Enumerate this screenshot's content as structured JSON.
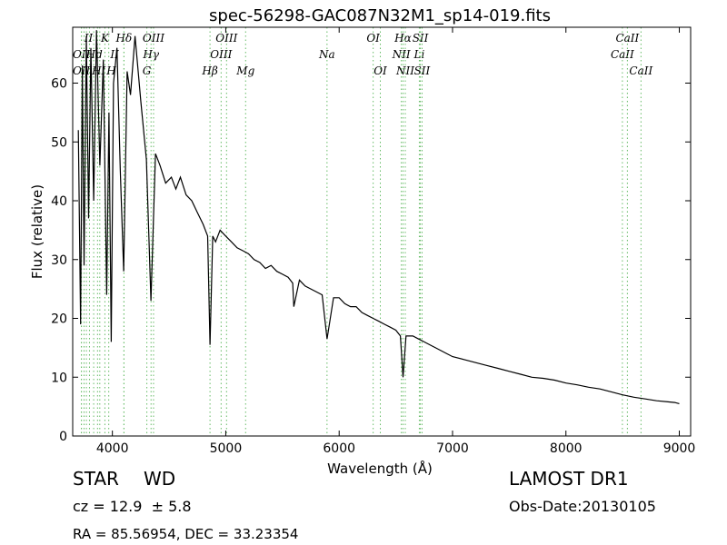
{
  "chart_data": {
    "type": "line",
    "title": "spec-56298-GAC087N32M1_sp14-019.fits",
    "xlabel": "Wavelength (Å)",
    "ylabel": "Flux (relative)",
    "xlim": [
      3650,
      9100
    ],
    "ylim": [
      0,
      69.5
    ],
    "xticks": [
      4000,
      5000,
      6000,
      7000,
      8000,
      9000
    ],
    "yticks": [
      0,
      10,
      20,
      30,
      40,
      50,
      60
    ],
    "grid": false,
    "line_color": "#000000",
    "marker_line_color": "#66bb66",
    "series": [
      {
        "values_note_removed": true,
        "x": [
          3700,
          3720,
          3735,
          3750,
          3770,
          3790,
          3810,
          3835,
          3860,
          3890,
          3920,
          3950,
          3970,
          3990,
          4010,
          4040,
          4070,
          4100,
          4130,
          4160,
          4200,
          4250,
          4300,
          4340,
          4380,
          4420,
          4470,
          4520,
          4560,
          4600,
          4650,
          4700,
          4750,
          4800,
          4840,
          4861,
          4885,
          4910,
          4950,
          5000,
          5050,
          5100,
          5150,
          5200,
          5250,
          5300,
          5350,
          5400,
          5450,
          5500,
          5550,
          5590,
          5600,
          5650,
          5700,
          5750,
          5800,
          5850,
          5893,
          5950,
          6000,
          6050,
          6100,
          6150,
          6200,
          6250,
          6300,
          6350,
          6400,
          6450,
          6500,
          6540,
          6563,
          6590,
          6620,
          6650,
          6700,
          6750,
          6800,
          6850,
          6900,
          6950,
          7000,
          7100,
          7200,
          7300,
          7400,
          7500,
          7600,
          7700,
          7800,
          7900,
          8000,
          8100,
          8200,
          8300,
          8400,
          8500,
          8600,
          8700,
          8800,
          8900,
          8960,
          9000
        ],
        "y": [
          52,
          19,
          63,
          29,
          68,
          37,
          66,
          40,
          69,
          46,
          64,
          24,
          55,
          16,
          60,
          66,
          45,
          28,
          62,
          58,
          68,
          57,
          47,
          23,
          48,
          46,
          43,
          44,
          42,
          44,
          41,
          40,
          38,
          36,
          34,
          15.5,
          34,
          33,
          35,
          34,
          33,
          32,
          31.5,
          31,
          30,
          29.5,
          28.5,
          29,
          28,
          27.5,
          27,
          26,
          22,
          26.5,
          25.5,
          25,
          24.5,
          24,
          16.5,
          23.5,
          23.5,
          22.5,
          22,
          22,
          21,
          20.5,
          20,
          19.5,
          19,
          18.5,
          18,
          17,
          10,
          17,
          17,
          17,
          16.5,
          16,
          15.5,
          15,
          14.5,
          14,
          13.5,
          13,
          12.5,
          12,
          11.5,
          11,
          10.5,
          10,
          9.8,
          9.5,
          9.0,
          8.7,
          8.3,
          8.0,
          7.5,
          7.0,
          6.6,
          6.3,
          6.0,
          5.8,
          5.7,
          5.5
        ]
      }
    ],
    "line_markers": [
      {
        "x": 3727,
        "label": "OII",
        "row": 1
      },
      {
        "x": 3727,
        "label": "OII",
        "row": 2
      },
      {
        "x": 3750,
        "label": "",
        "row": 0
      },
      {
        "x": 3771,
        "label": "",
        "row": 0
      },
      {
        "x": 3798,
        "label": "",
        "row": 0
      },
      {
        "x": 3835,
        "label": "",
        "row": 1
      },
      {
        "x": 3869,
        "label": "",
        "row": 2
      },
      {
        "x": 3889,
        "label": "",
        "row": 1
      },
      {
        "x": 3934,
        "label": "K",
        "row": 0
      },
      {
        "x": 3968,
        "label": "",
        "row": 2
      },
      {
        "x": 4102,
        "label": "Hδ",
        "row": 0
      },
      {
        "x": 4102,
        "label": "",
        "row": 2
      },
      {
        "x": 4304,
        "label": "G",
        "row": 2
      },
      {
        "x": 4341,
        "label": "Hγ",
        "row": 1
      },
      {
        "x": 4363,
        "label": "OIII",
        "row": 0
      },
      {
        "x": 4861,
        "label": "Hβ",
        "row": 2
      },
      {
        "x": 4959,
        "label": "OIII",
        "row": 1
      },
      {
        "x": 5007,
        "label": "OIII",
        "row": 0
      },
      {
        "x": 5175,
        "label": "Mg",
        "row": 2
      },
      {
        "x": 5893,
        "label": "Na",
        "row": 1
      },
      {
        "x": 6300,
        "label": "OI",
        "row": 0
      },
      {
        "x": 6363,
        "label": "OI",
        "row": 2
      },
      {
        "x": 6548,
        "label": "NII",
        "row": 1
      },
      {
        "x": 6563,
        "label": "Hα",
        "row": 0
      },
      {
        "x": 6583,
        "label": "NII",
        "row": 2
      },
      {
        "x": 6707,
        "label": "Li",
        "row": 1
      },
      {
        "x": 6716,
        "label": "SII",
        "row": 0
      },
      {
        "x": 6731,
        "label": "SII",
        "row": 2
      },
      {
        "x": 8498,
        "label": "CaII",
        "row": 1
      },
      {
        "x": 8542,
        "label": "CaII",
        "row": 0
      },
      {
        "x": 8662,
        "label": "CaII",
        "row": 2
      }
    ],
    "marker_label_overlaps": [
      {
        "x": 3790,
        "label": "II",
        "row": 0
      },
      {
        "x": 3840,
        "label": "Hd",
        "row": 1
      },
      {
        "x": 3880,
        "label": "HI",
        "row": 2
      },
      {
        "x": 4020,
        "label": "II",
        "row": 1
      },
      {
        "x": 3990,
        "label": "H",
        "row": 2
      }
    ]
  },
  "info": {
    "class_label": "STAR",
    "subclass": "WD",
    "cz": "cz = 12.9  ± 5.8",
    "radec": "RA = 85.56954, DEC = 33.23354",
    "survey": "LAMOST DR1",
    "obs_date": "Obs-Date:20130105"
  }
}
